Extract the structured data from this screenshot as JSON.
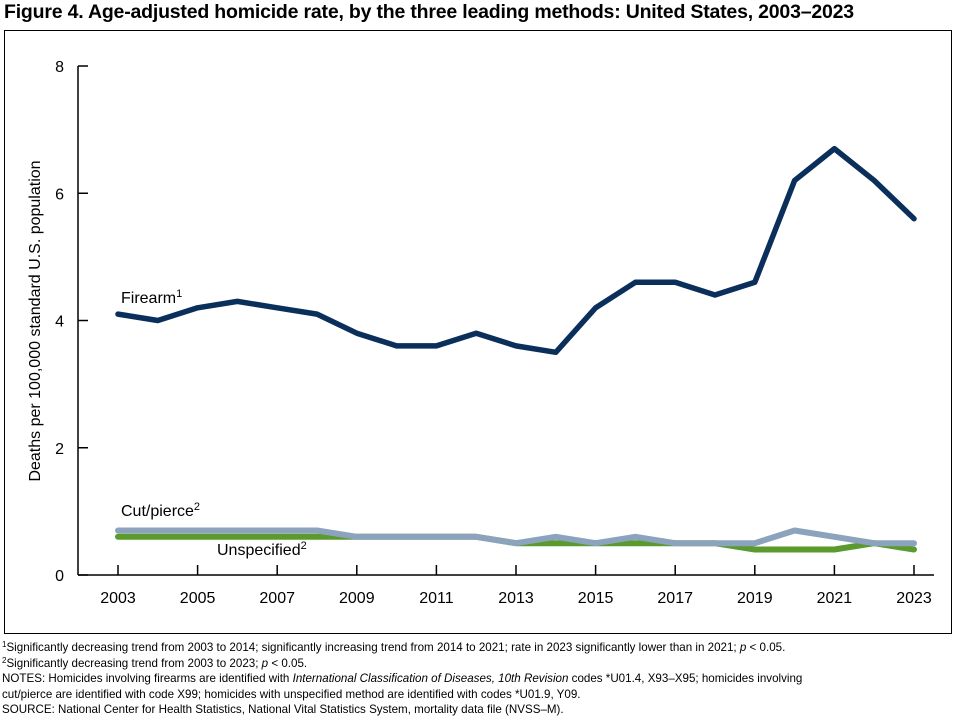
{
  "title": "Figure 4. Age-adjusted homicide rate, by the three leading methods: United States, 2003–2023",
  "chart_data": {
    "type": "line",
    "title": "Figure 4. Age-adjusted homicide rate, by the three leading methods: United States, 2003–2023",
    "xlabel": "",
    "ylabel": "Deaths per 100,000 standard U.S. population",
    "x": [
      2003,
      2004,
      2005,
      2006,
      2007,
      2008,
      2009,
      2010,
      2011,
      2012,
      2013,
      2014,
      2015,
      2016,
      2017,
      2018,
      2019,
      2020,
      2021,
      2022,
      2023
    ],
    "xticks": [
      "2003",
      "2005",
      "2007",
      "2009",
      "2011",
      "2013",
      "2015",
      "2017",
      "2019",
      "2021",
      "2023"
    ],
    "ylim": [
      0,
      8
    ],
    "yticks": [
      "0",
      "2",
      "4",
      "6",
      "8"
    ],
    "grid": false,
    "legend": "inline labels",
    "series": [
      {
        "name": "Firearm",
        "footnote": "1",
        "color": "#0b2f5b",
        "values": [
          4.1,
          4.0,
          4.2,
          4.3,
          4.2,
          4.1,
          3.8,
          3.6,
          3.6,
          3.8,
          3.6,
          3.5,
          4.2,
          4.6,
          4.6,
          4.4,
          4.6,
          6.2,
          6.7,
          6.2,
          5.6
        ]
      },
      {
        "name": "Cut/pierce",
        "footnote": "2",
        "color": "#8ba3bd",
        "values": [
          0.7,
          0.7,
          0.7,
          0.7,
          0.7,
          0.7,
          0.6,
          0.6,
          0.6,
          0.6,
          0.5,
          0.6,
          0.5,
          0.6,
          0.5,
          0.5,
          0.5,
          0.7,
          0.6,
          0.5,
          0.5
        ]
      },
      {
        "name": "Unspecified",
        "footnote": "2",
        "color": "#5b9a2e",
        "values": [
          0.6,
          0.6,
          0.6,
          0.6,
          0.6,
          0.6,
          0.6,
          0.6,
          0.6,
          0.6,
          0.5,
          0.5,
          0.5,
          0.5,
          0.5,
          0.5,
          0.4,
          0.4,
          0.4,
          0.5,
          0.4
        ]
      }
    ]
  },
  "notes": {
    "fn1_mark": "1",
    "fn1_text": "Significantly decreasing trend from 2003 to 2014; significantly increasing trend from 2014 to 2021; rate in 2023 significantly lower than in 2021; ",
    "fn1_p": "p",
    "fn1_tail": " < 0.05.",
    "fn2_mark": "2",
    "fn2_text": "Significantly decreasing trend from 2003 to 2023; ",
    "fn2_p": "p",
    "fn2_tail": " < 0.05.",
    "n_prefix": "NOTES: Homicides involving firearms are identified with ",
    "n_italic": "International Classification of Diseases, 10th Revision",
    "n_rest1": " codes *U01.4, X93–X95; homicides involving",
    "n_line2": "cut/pierce are identified with code X99; homicides with unspecified method are identified with codes *U01.9, Y09.",
    "source": "SOURCE: National Center for Health Statistics, National Vital Statistics System, mortality data file (NVSS–M)."
  }
}
